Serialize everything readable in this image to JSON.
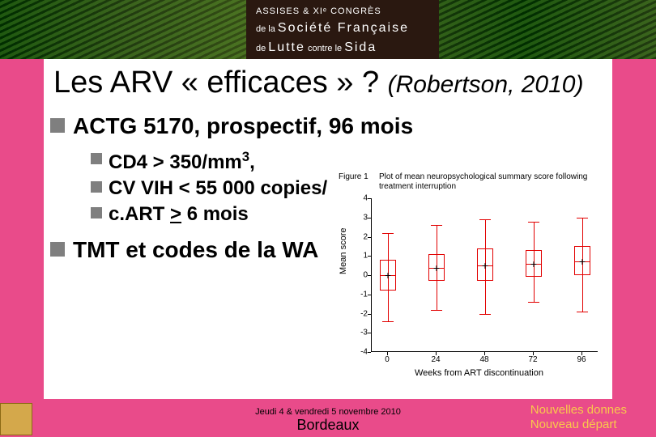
{
  "banner": {
    "line1": "ASSISES & XIᵉ CONGRÈS",
    "line2_small": "de la ",
    "line2_big": "Société Française",
    "line3_small1": "de ",
    "line3_big1": "Lutte",
    "line3_small2": " contre le ",
    "line3_big2": "Sida"
  },
  "title": {
    "main": "Les ARV « efficaces » ? ",
    "cite": "(Robertson, 2010)"
  },
  "bullets": {
    "l1a": "ACTG 5170, prospectif, 96 mois",
    "l2a_prefix": "CD4 > 350/mm",
    "l2a_sup": "3",
    "l2a_suffix": ",",
    "l2b": "CV VIH < 55 000 copies/",
    "l2c_prefix": "c.ART ",
    "l2c_underline": ">",
    "l2c_suffix": " 6 mois",
    "l1b": "TMT et codes de la WA"
  },
  "chart": {
    "fig_label": "Figure 1",
    "title": "Plot of mean neuropsychological summary score following treatment interruption",
    "yaxis_title": "Mean score",
    "xaxis_title": "Weeks from ART discontinuation",
    "ylim": [
      -4,
      4
    ],
    "yticks": [
      -4,
      -3,
      -2,
      -1,
      0,
      1,
      2,
      3,
      4
    ],
    "xticks": [
      0,
      24,
      48,
      72,
      96
    ],
    "box_color": "#e20000",
    "mean_color": "#000000",
    "plot_bg": "#ffffff",
    "series": [
      {
        "x": 0,
        "whisker_low": -2.4,
        "q1": -0.8,
        "median": 0.0,
        "q3": 0.8,
        "whisker_high": 2.2,
        "mean": 0.0
      },
      {
        "x": 24,
        "whisker_low": -1.8,
        "q1": -0.3,
        "median": 0.4,
        "q3": 1.1,
        "whisker_high": 2.6,
        "mean": 0.4
      },
      {
        "x": 48,
        "whisker_low": -2.0,
        "q1": -0.3,
        "median": 0.5,
        "q3": 1.4,
        "whisker_high": 2.9,
        "mean": 0.5
      },
      {
        "x": 72,
        "whisker_low": -1.4,
        "q1": -0.1,
        "median": 0.6,
        "q3": 1.3,
        "whisker_high": 2.8,
        "mean": 0.6
      },
      {
        "x": 96,
        "whisker_low": -1.9,
        "q1": 0.0,
        "median": 0.7,
        "q3": 1.5,
        "whisker_high": 3.0,
        "mean": 0.7
      }
    ]
  },
  "footer": {
    "date": "Jeudi 4 & vendredi 5 novembre 2010",
    "city": "Bordeaux",
    "right1": "Nouvelles donnes",
    "right2": "Nouveau départ"
  }
}
